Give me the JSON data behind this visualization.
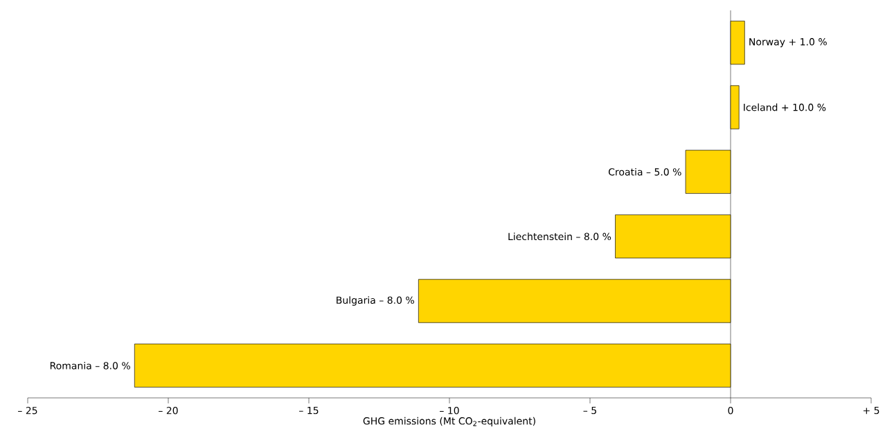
{
  "chart_data": {
    "type": "bar",
    "orientation": "horizontal",
    "xlabel": "GHG emissions (Mt CO$_{2}$-equivalent)",
    "categories": [
      "Norway + 1.0 %",
      "Iceland + 10.0 %",
      "Croatia – 5.0 %",
      "Liechtenstein – 8.0 %",
      "Bulgaria – 8.0 %",
      "Romania – 8.0 %"
    ],
    "values": [
      0.5,
      0.3,
      -1.6,
      -4.1,
      -11.1,
      -21.2
    ],
    "color": "#ffd500",
    "xlim": [
      -25,
      5
    ],
    "xticks": [
      {
        "value": -25,
        "label": "– 25"
      },
      {
        "value": -20,
        "label": "– 20"
      },
      {
        "value": -15,
        "label": "– 15"
      },
      {
        "value": -10,
        "label": "– 10"
      },
      {
        "value": -5,
        "label": "– 5"
      },
      0,
      {
        "value": 5,
        "label": "+ 5"
      }
    ]
  }
}
